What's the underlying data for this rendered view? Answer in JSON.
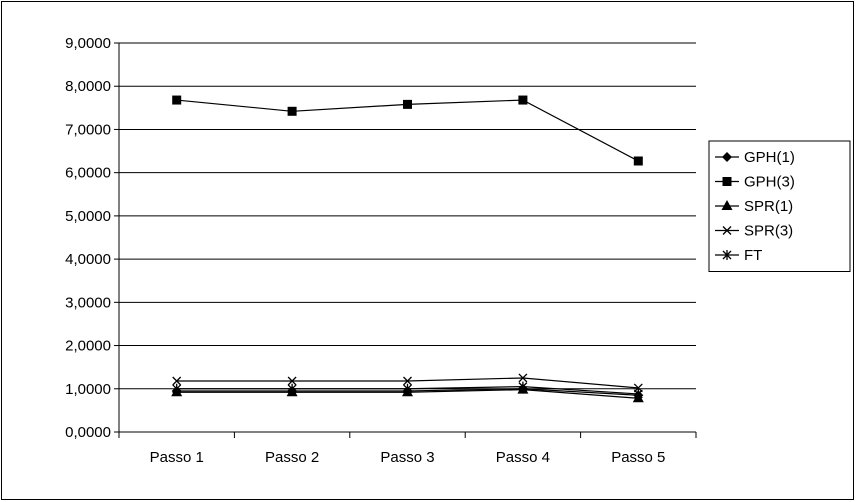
{
  "chart_data": {
    "type": "line",
    "categories": [
      "Passo 1",
      "Passo 2",
      "Passo 3",
      "Passo 4",
      "Passo 5"
    ],
    "ylim": [
      0,
      9
    ],
    "yticks": [
      "0,0000",
      "1,0000",
      "2,0000",
      "3,0000",
      "4,0000",
      "5,0000",
      "6,0000",
      "7,0000",
      "8,0000",
      "9,0000"
    ],
    "grid": true,
    "legend_position": "right",
    "series": [
      {
        "name": "GPH(1)",
        "marker": "diamond",
        "values": [
          0.95,
          0.95,
          0.95,
          1.0,
          0.85
        ]
      },
      {
        "name": "GPH(3)",
        "marker": "square",
        "values": [
          7.68,
          7.42,
          7.58,
          7.68,
          6.27
        ]
      },
      {
        "name": "SPR(1)",
        "marker": "triangle",
        "values": [
          0.92,
          0.92,
          0.92,
          0.98,
          0.78
        ]
      },
      {
        "name": "SPR(3)",
        "marker": "x",
        "values": [
          1.18,
          1.18,
          1.18,
          1.25,
          1.02
        ]
      },
      {
        "name": "FT",
        "marker": "star",
        "values": [
          1.0,
          1.0,
          1.0,
          1.05,
          0.88
        ]
      }
    ]
  }
}
